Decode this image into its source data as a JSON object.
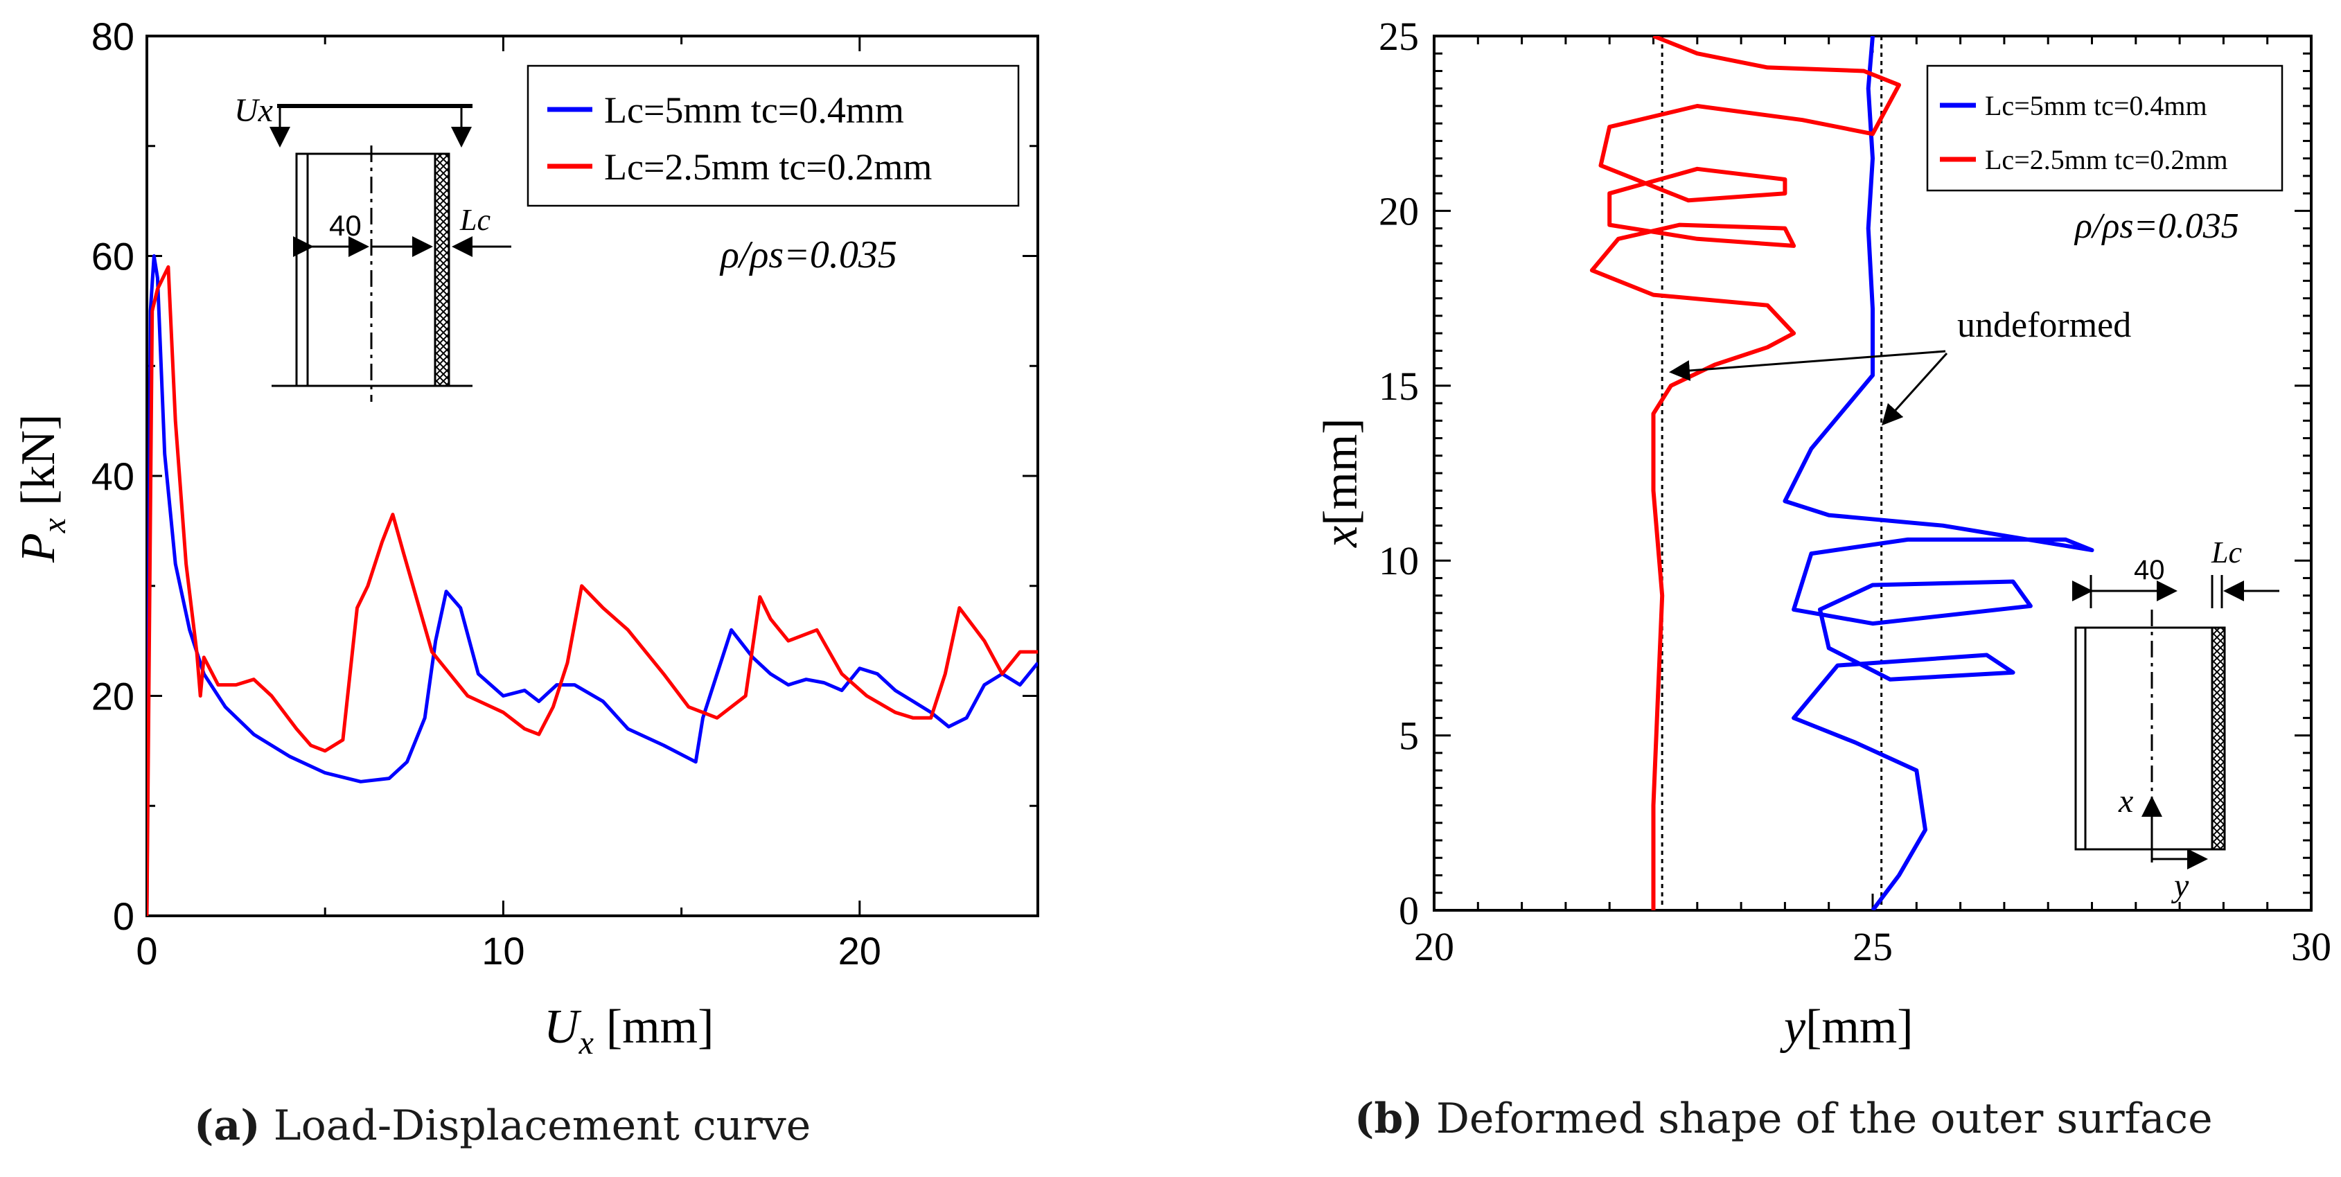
{
  "colors": {
    "blue": "#0000ff",
    "red": "#ff0000",
    "axis": "#000000"
  },
  "chart_data": [
    {
      "type": "line",
      "panel_label": "(a)",
      "caption": "Load-Displacement curve",
      "xlabel_sym": "U",
      "xlabel_sub": "x",
      "xlabel_unit": "[mm]",
      "ylabel_sym": "P",
      "ylabel_sub": "x",
      "ylabel_unit": "[kN]",
      "xlim": [
        0,
        25
      ],
      "ylim": [
        0,
        80
      ],
      "xticks": [
        0,
        10,
        20
      ],
      "yticks": [
        0,
        20,
        40,
        60,
        80
      ],
      "annotation": "ρ/ρs=0.035",
      "inset": {
        "dim_label": "40",
        "load_label": "Ux",
        "cell_label": "Lc"
      },
      "legend": [
        {
          "label": "Lc=5mm tc=0.4mm",
          "color": "#0000ff"
        },
        {
          "label": "Lc=2.5mm tc=0.2mm",
          "color": "#ff0000"
        }
      ],
      "series": [
        {
          "name": "Lc=5mm tc=0.4mm",
          "color": "#0000ff",
          "x": [
            0,
            0.1,
            0.2,
            0.3,
            0.5,
            0.8,
            1.2,
            1.6,
            2.2,
            3,
            4,
            5,
            6,
            6.8,
            7.3,
            7.8,
            8.1,
            8.4,
            8.8,
            9.3,
            10,
            10.6,
            11,
            11.5,
            12,
            12.8,
            13.5,
            14.5,
            15.4,
            15.6,
            16,
            16.4,
            17,
            17.5,
            18,
            18.5,
            19,
            19.5,
            20,
            20.5,
            21,
            21.5,
            22,
            22.5,
            23,
            23.5,
            24,
            24.5,
            25
          ],
          "y": [
            0,
            55,
            60,
            58,
            42,
            32,
            26,
            22,
            19,
            16.5,
            14.5,
            13,
            12.2,
            12.5,
            14,
            18,
            25,
            29.5,
            28,
            22,
            20,
            20.5,
            19.5,
            21,
            21,
            19.5,
            17,
            15.5,
            14,
            18,
            22,
            26,
            23.5,
            22,
            21,
            21.5,
            21.2,
            20.5,
            22.5,
            22,
            20.5,
            19.5,
            18.5,
            17.2,
            18,
            21,
            22,
            21,
            23
          ]
        },
        {
          "name": "Lc=2.5mm tc=0.2mm",
          "color": "#ff0000",
          "x": [
            0,
            0.15,
            0.3,
            0.6,
            0.8,
            1.1,
            1.4,
            1.5,
            1.6,
            2,
            2.5,
            3,
            3.5,
            4.2,
            4.6,
            5,
            5.5,
            5.9,
            6.2,
            6.6,
            6.9,
            7.2,
            8,
            9,
            10,
            10.6,
            11,
            11.4,
            11.8,
            12.2,
            12.8,
            13.5,
            14.5,
            15.2,
            16,
            16.8,
            17.2,
            17.5,
            18,
            18.8,
            19.5,
            20.2,
            21,
            21.5,
            22,
            22.4,
            22.8,
            23.5,
            24,
            24.5,
            25
          ],
          "y": [
            0,
            55,
            57,
            59,
            45,
            32,
            24,
            20,
            23.5,
            21,
            21,
            21.5,
            20,
            17,
            15.5,
            15,
            16,
            28,
            30,
            34,
            36.5,
            33,
            24,
            20,
            18.5,
            17,
            16.5,
            19,
            23,
            30,
            28,
            26,
            22,
            19,
            18,
            20,
            29,
            27,
            25,
            26,
            22,
            20,
            18.5,
            18,
            18,
            22,
            28,
            25,
            22,
            24,
            24
          ]
        }
      ]
    },
    {
      "type": "line",
      "panel_label": "(b)",
      "caption": "Deformed shape of the outer surface",
      "xlabel_sym": "y",
      "xlabel_unit": "[mm]",
      "ylabel_sym": "x",
      "ylabel_unit": "[mm]",
      "xlim": [
        20,
        30
      ],
      "ylim": [
        0,
        25
      ],
      "xticks": [
        20,
        25,
        30
      ],
      "yticks": [
        0,
        5,
        10,
        15,
        20,
        25
      ],
      "annotation": "ρ/ρs=0.035",
      "undeformed_label": "undeformed",
      "undeformed_positions": [
        22.6,
        25.1
      ],
      "inset": {
        "dim_label": "40",
        "cell_label": "Lc",
        "axis_x_label": "x",
        "axis_y_label": "y"
      },
      "legend": [
        {
          "label": "Lc=5mm tc=0.4mm",
          "color": "#0000ff"
        },
        {
          "label": "Lc=2.5mm tc=0.2mm",
          "color": "#ff0000"
        }
      ],
      "series": [
        {
          "name": "Lc=5mm tc=0.4mm",
          "color": "#0000ff",
          "y_mm": [
            25,
            25.3,
            25.6,
            25.5,
            24.8,
            24.1,
            24.6,
            26.3,
            26.6,
            25.2,
            24.5,
            24.4,
            25.0,
            26.6,
            26.8,
            25.0,
            24.1,
            24.3,
            25.4,
            27.2,
            27.5,
            25.8,
            24.5,
            24.0,
            24.3,
            25.0,
            25.0,
            24.95,
            25.0,
            24.95,
            25.0
          ],
          "x_mm": [
            0,
            1,
            2.3,
            4,
            4.8,
            5.5,
            7.0,
            7.3,
            6.8,
            6.6,
            7.5,
            8.6,
            9.3,
            9.4,
            8.7,
            8.2,
            8.6,
            10.2,
            10.6,
            10.6,
            10.3,
            11.0,
            11.3,
            11.7,
            13.2,
            15.3,
            17.2,
            19.5,
            21.5,
            23.5,
            25
          ]
        },
        {
          "name": "Lc=2.5mm tc=0.2mm",
          "color": "#ff0000",
          "y_mm": [
            22.5,
            22.5,
            22.55,
            22.6,
            22.5,
            22.5,
            22.7,
            23.2,
            23.8,
            24.1,
            23.8,
            22.5,
            21.8,
            22.1,
            22.8,
            24.0,
            24.1,
            23.0,
            22.0,
            22.0,
            23.0,
            24.0,
            24.0,
            22.9,
            21.9,
            22.0,
            23.0,
            24.2,
            25.0,
            25.3,
            24.9,
            23.8,
            23.0,
            22.5
          ],
          "x_mm": [
            0,
            3,
            6,
            9,
            12,
            14.2,
            15.0,
            15.6,
            16.1,
            16.5,
            17.3,
            17.6,
            18.3,
            19.2,
            19.6,
            19.5,
            19.0,
            19.2,
            19.6,
            20.5,
            21.2,
            20.9,
            20.5,
            20.3,
            21.3,
            22.4,
            23.0,
            22.6,
            22.2,
            23.6,
            24.0,
            24.1,
            24.5,
            25
          ]
        }
      ]
    }
  ]
}
